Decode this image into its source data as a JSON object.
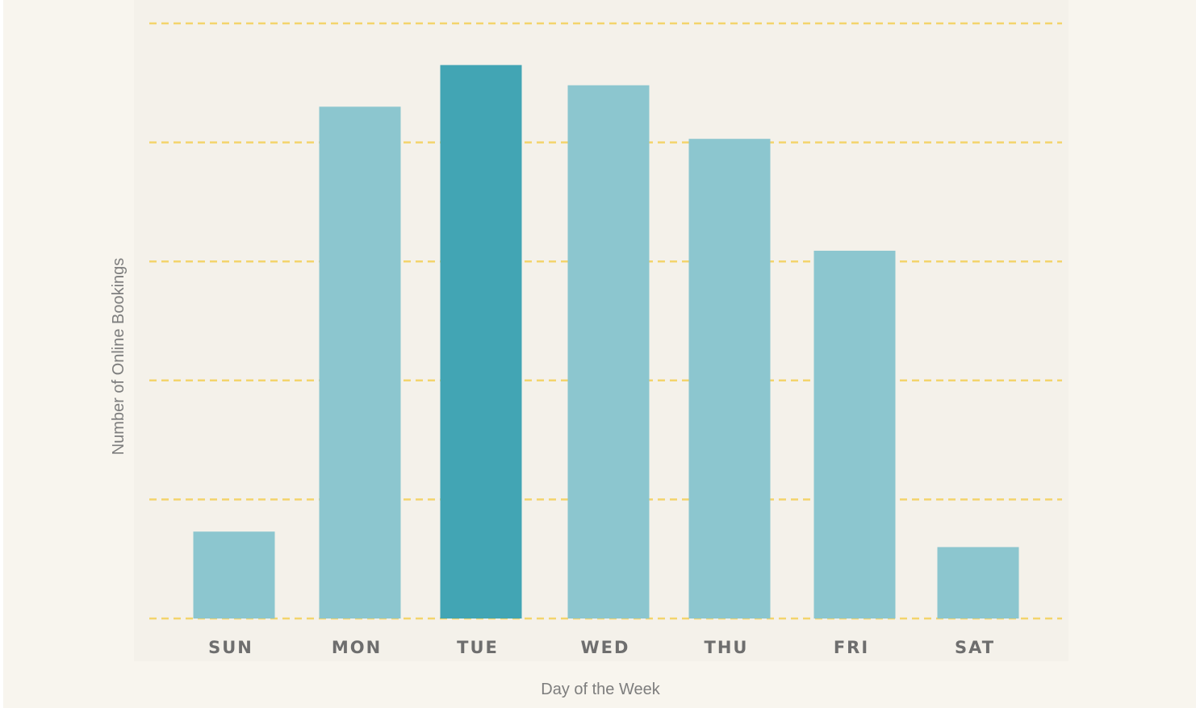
{
  "chart_data": {
    "type": "bar",
    "categories": [
      "SUN",
      "MON",
      "TUE",
      "WED",
      "THU",
      "FRI",
      "SAT"
    ],
    "values": [
      0.73,
      4.3,
      4.65,
      4.48,
      4.03,
      3.09,
      0.6
    ],
    "highlight": "TUE",
    "xlabel": "Day of the Week",
    "ylabel": "Number of Online Bookings",
    "ylim": [
      0,
      5
    ],
    "y_tick_labels_shown": false,
    "grid": true,
    "colors": {
      "bar": "#8cc6cf",
      "bar_highlight": "#42a5b4",
      "grid": "#f3d46c",
      "background": "#f4f1ea"
    }
  }
}
